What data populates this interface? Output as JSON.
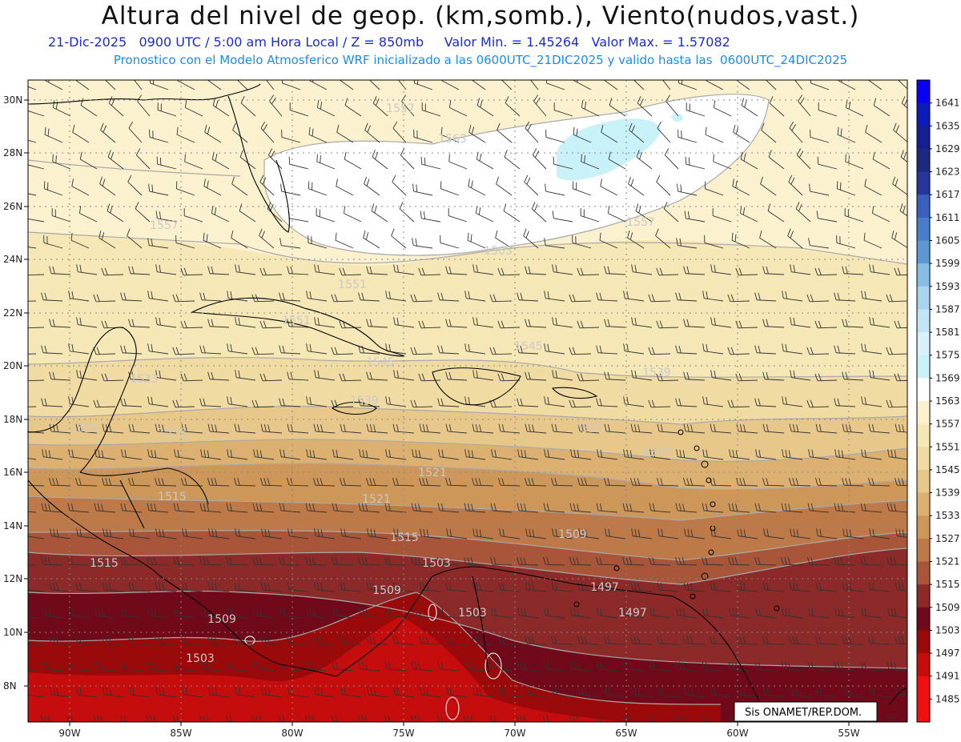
{
  "header": {
    "title": "Altura del nivel de geop. (km,somb.), Viento(nudos,vast.)",
    "date": "21-Dic-2025",
    "time": "0900 UTC / 5:00 am Hora Local / Z = 850mb",
    "min": "Valor Min. = 1.45264",
    "max": "Valor Max. = 1.57082",
    "model_line": "Pronostico con el Modelo Atmosferico WRF inicializado a las 0600UTC_21DIC2025 y valido hasta las  0600UTC_24DIC2025"
  },
  "axes": {
    "lat_labels": [
      "30N",
      "28N",
      "26N",
      "24N",
      "22N",
      "20N",
      "18N",
      "16N",
      "14N",
      "12N",
      "10N",
      "8N"
    ],
    "lon_labels": [
      "90W",
      "85W",
      "80W",
      "75W",
      "70W",
      "65W",
      "60W",
      "55W"
    ]
  },
  "colorbar": {
    "levels": [
      "1641",
      "1635",
      "1629",
      "1623",
      "1617",
      "1611",
      "1605",
      "1599",
      "1593",
      "1587",
      "1581",
      "1575",
      "1569",
      "1563",
      "1557",
      "1551",
      "1545",
      "1539",
      "1533",
      "1527",
      "1521",
      "1515",
      "1509",
      "1503",
      "1497",
      "1491",
      "1485"
    ],
    "colors": [
      "#0a00f5",
      "#0d1bb8",
      "#161f8f",
      "#1b2a7d",
      "#26369c",
      "#3a5fbd",
      "#4a7cc8",
      "#5c97d2",
      "#88bde3",
      "#a9d3ee",
      "#c3e4f4",
      "#d8f1fb",
      "#c8f2f8",
      "#ffffff",
      "#fbf1cf",
      "#f6e7b6",
      "#f0dba2",
      "#e8c88a",
      "#dcb070",
      "#cd975a",
      "#bd7a48",
      "#a8553a",
      "#8c2a2a",
      "#700a1a",
      "#9a0a0a",
      "#c50d0d",
      "#ef1010"
    ]
  },
  "contours": [
    "1557",
    "1563",
    "1563",
    "1557",
    "1557",
    "1551",
    "1545",
    "1551",
    "1545",
    "1539",
    "1533",
    "1539",
    "1533",
    "1527",
    "1521",
    "1521",
    "1527",
    "1515",
    "1521",
    "1509",
    "1515",
    "1515",
    "1497",
    "1503",
    "1509",
    "1503",
    "1509",
    "1497",
    "1503"
  ],
  "credit": "Sis      ONAMET/REP.DOM."
}
